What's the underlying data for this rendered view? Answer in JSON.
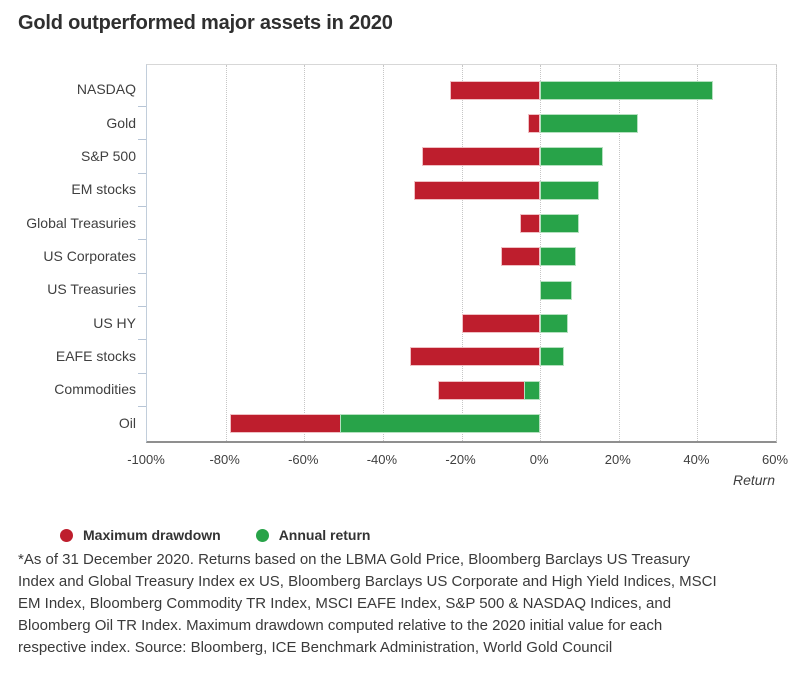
{
  "page": {
    "title": "Gold outperformed major assets in 2020"
  },
  "chart_data": {
    "type": "bar",
    "orientation": "horizontal",
    "title": "Gold outperformed major assets in 2020",
    "categories": [
      "NASDAQ",
      "Gold",
      "S&P 500",
      "EM stocks",
      "Global Treasuries",
      "US Corporates",
      "US Treasuries",
      "US HY",
      "EAFE stocks",
      "Commodities",
      "Oil"
    ],
    "series": [
      {
        "name": "Maximum drawdown",
        "color": "#be1e2d",
        "values": [
          -23,
          -3,
          -30,
          -32,
          -5,
          -10,
          0,
          -20,
          -33,
          -26,
          -79
        ]
      },
      {
        "name": "Annual return",
        "color": "#28a349",
        "values": [
          44,
          25,
          16,
          15,
          10,
          9,
          8,
          7,
          6,
          -4,
          -51
        ]
      }
    ],
    "xlabel": "Return",
    "x_ticks": [
      "-100%",
      "-80%",
      "-60%",
      "-40%",
      "-20%",
      "0%",
      "20%",
      "40%",
      "60%"
    ],
    "xlim": [
      -100,
      60
    ],
    "grid": "vertical-dotted",
    "legend_position": "bottom-left",
    "unit": "percent"
  },
  "footnote": {
    "lines": [
      "*As of 31 December 2020. Returns based on the LBMA Gold Price, Bloomberg Barclays US Treasury",
      "Index and Global Treasury Index ex US, Bloomberg Barclays US Corporate and High Yield Indices, MSCI",
      "EM Index, Bloomberg Commodity TR Index, MSCI EAFE Index, S&P 500 & NASDAQ Indices, and",
      "Bloomberg Oil TR Index. Maximum drawdown computed relative to the 2020 initial value for each",
      "respective index. Source: Bloomberg, ICE Benchmark Administration, World Gold Council"
    ]
  }
}
